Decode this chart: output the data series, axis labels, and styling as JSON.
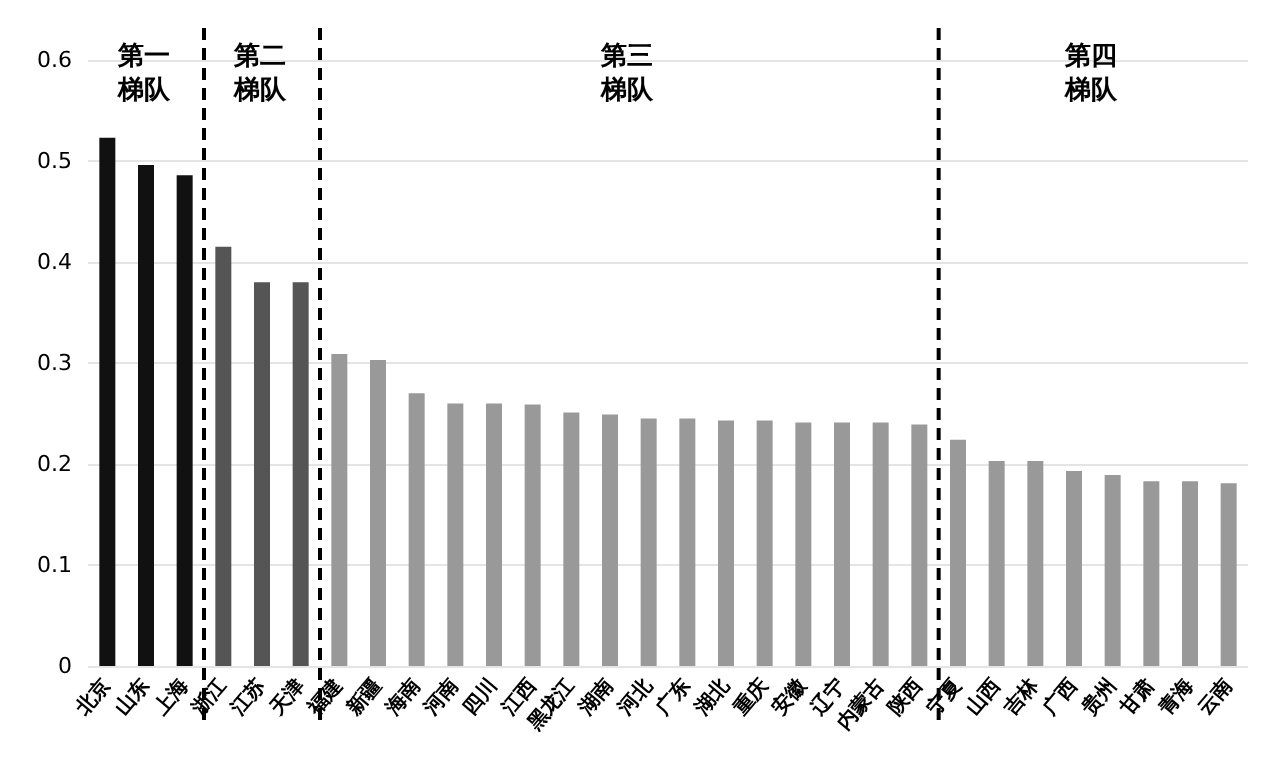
{
  "chart_data": {
    "type": "bar",
    "categories": [
      "北京",
      "山东",
      "上海",
      "浙江",
      "江苏",
      "天津",
      "福建",
      "新疆",
      "海南",
      "河南",
      "四川",
      "江西",
      "黑龙江",
      "湖南",
      "河北",
      "广东",
      "湖北",
      "重庆",
      "安徽",
      "辽宁",
      "内蒙古",
      "陕西",
      "宁夏",
      "山西",
      "吉林",
      "广西",
      "贵州",
      "甘肃",
      "青海",
      "云南"
    ],
    "values": [
      0.523,
      0.496,
      0.486,
      0.415,
      0.38,
      0.38,
      0.309,
      0.303,
      0.27,
      0.26,
      0.26,
      0.259,
      0.251,
      0.249,
      0.245,
      0.245,
      0.243,
      0.243,
      0.241,
      0.241,
      0.241,
      0.239,
      0.224,
      0.203,
      0.203,
      0.193,
      0.189,
      0.183,
      0.183,
      0.181
    ],
    "colors": [
      "#111111",
      "#111111",
      "#111111",
      "#555555",
      "#555555",
      "#555555",
      "#999999",
      "#999999",
      "#999999",
      "#999999",
      "#999999",
      "#999999",
      "#999999",
      "#999999",
      "#999999",
      "#999999",
      "#999999",
      "#999999",
      "#999999",
      "#999999",
      "#999999",
      "#999999",
      "#999999",
      "#999999",
      "#999999",
      "#999999",
      "#999999",
      "#999999",
      "#999999",
      "#999999"
    ],
    "ylim": [
      0,
      0.6
    ],
    "yticks": [
      0,
      0.1,
      0.2,
      0.3,
      0.4,
      0.5,
      0.6
    ],
    "grid": "y",
    "ref_lines": [
      {
        "axis": "x",
        "value": "浙江",
        "color": "#000000",
        "line_style": "dashed"
      },
      {
        "axis": "x",
        "value": "福建",
        "color": "#000000",
        "line_style": "dashed"
      },
      {
        "axis": "x",
        "value": "宁夏",
        "color": "#000000",
        "line_style": "dashed"
      }
    ],
    "annotations": [
      "第一梯队",
      "第二梯队",
      "第三梯队",
      "第四梯队"
    ]
  }
}
